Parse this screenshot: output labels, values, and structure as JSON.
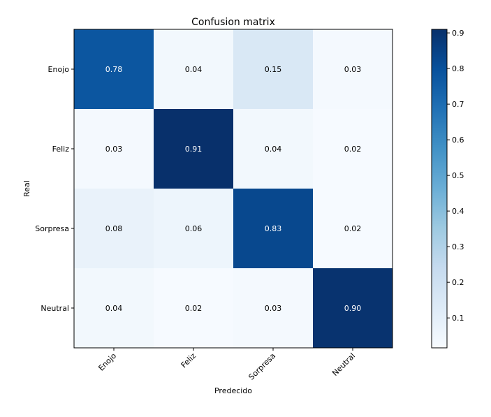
{
  "chart_data": {
    "type": "heatmap",
    "title": "Confusion matrix",
    "xlabel": "Predecido",
    "ylabel": "Real",
    "x_categories": [
      "Enojo",
      "Feliz",
      "Sorpresa",
      "Neutral"
    ],
    "y_categories": [
      "Enojo",
      "Feliz",
      "Sorpresa",
      "Neutral"
    ],
    "values": [
      [
        0.78,
        0.04,
        0.15,
        0.03
      ],
      [
        0.03,
        0.91,
        0.04,
        0.02
      ],
      [
        0.08,
        0.06,
        0.83,
        0.02
      ],
      [
        0.04,
        0.02,
        0.03,
        0.9
      ]
    ],
    "value_labels": [
      [
        "0.78",
        "0.04",
        "0.15",
        "0.03"
      ],
      [
        "0.03",
        "0.91",
        "0.04",
        "0.02"
      ],
      [
        "0.08",
        "0.06",
        "0.83",
        "0.02"
      ],
      [
        "0.04",
        "0.02",
        "0.03",
        "0.90"
      ]
    ],
    "colormap": "Blues",
    "colorbar": {
      "range": [
        0.016,
        0.91
      ],
      "ticks": [
        0.1,
        0.2,
        0.3,
        0.4,
        0.5,
        0.6,
        0.7,
        0.8,
        0.9
      ],
      "tick_labels": [
        "0.1",
        "0.2",
        "0.3",
        "0.4",
        "0.5",
        "0.6",
        "0.7",
        "0.8",
        "0.9"
      ]
    },
    "colormap_stops": [
      "#f7fbff",
      "#deebf7",
      "#c6dbef",
      "#9ecae1",
      "#6baed6",
      "#4292c6",
      "#2171b5",
      "#08519c",
      "#08306b"
    ]
  }
}
